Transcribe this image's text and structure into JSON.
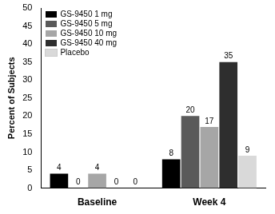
{
  "chart_data": {
    "type": "bar",
    "y_label": "Percent of Subjects",
    "categories": [
      "Baseline",
      "Week 4"
    ],
    "series": [
      {
        "name": "GS-9450 1 mg",
        "color": "#000000",
        "values": [
          4,
          8
        ]
      },
      {
        "name": "GS-9450 5 mg",
        "color": "#5a5a5a",
        "values": [
          0,
          20
        ]
      },
      {
        "name": "GS-9450 10 mg",
        "color": "#a6a6a6",
        "values": [
          4,
          17
        ]
      },
      {
        "name": "GS-9450 40 mg",
        "color": "#2e2e2e",
        "values": [
          0,
          35
        ]
      },
      {
        "name": "Placebo",
        "color": "#d9d9d9",
        "values": [
          0,
          9
        ]
      }
    ],
    "ylim": [
      0,
      50
    ],
    "yticks": [
      0,
      5,
      10,
      15,
      20,
      25,
      30,
      35,
      40,
      45,
      50
    ],
    "grid": false,
    "legend": "upper left",
    "data_labels": true
  }
}
